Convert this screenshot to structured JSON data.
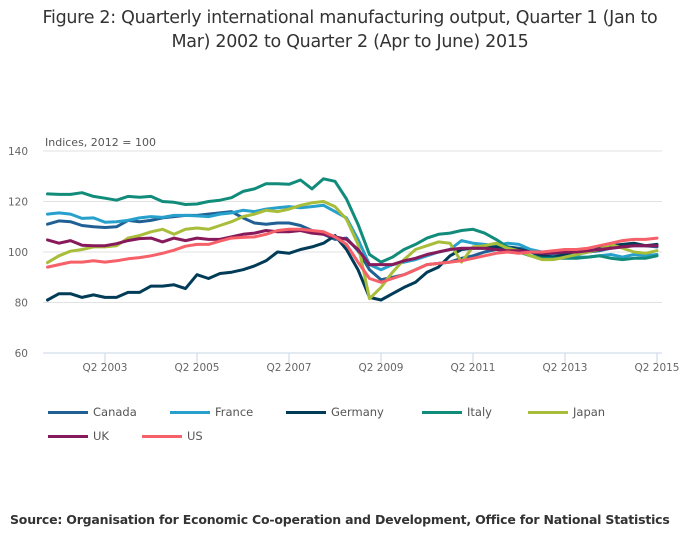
{
  "chart_data": {
    "type": "line",
    "title": "Figure 2: Quarterly international manufacturing output, Quarter 1 (Jan to Mar) 2002 to Quarter 2 (Apr to June) 2015",
    "title_lines": [
      "Figure 2: Quarterly international manufacturing output, Quarter 1 (Jan to",
      "Mar) 2002 to Quarter 2 (Apr to June) 2015"
    ],
    "ylabel": "Indices, 2012 = 100",
    "xlabel": "",
    "ylim": [
      60,
      140
    ],
    "yticks": [
      60,
      80,
      100,
      120,
      140
    ],
    "x_start": "Q1 2002",
    "x_end": "Q2 2015",
    "xtick_labels": [
      "Q2 2003",
      "Q2 2005",
      "Q2 2007",
      "Q2 2009",
      "Q2 2011",
      "Q2 2013",
      "Q2 2015"
    ],
    "xtick_indices": [
      5,
      13,
      21,
      29,
      37,
      45,
      53
    ],
    "grid": true,
    "legend_position": "bottom",
    "series": [
      {
        "name": "Canada",
        "color": "#206095",
        "values": [
          111,
          112.3,
          112,
          110.5,
          110,
          109.7,
          110,
          112.5,
          112,
          112.5,
          113.5,
          114,
          114.5,
          114.5,
          115,
          115.5,
          116,
          113.5,
          111.5,
          111,
          111.5,
          111.5,
          110.5,
          108.5,
          107,
          105,
          105.5,
          100.5,
          93,
          89,
          90,
          91,
          93,
          95,
          95.5,
          96,
          97.5,
          98.5,
          100,
          101,
          102,
          101.5,
          100.5,
          99.5,
          98.5,
          99,
          99.5,
          100,
          100.5,
          101.5,
          102,
          102.5,
          102.5,
          102
        ]
      },
      {
        "name": "France",
        "color": "#27A0CC",
        "values": [
          115,
          115.5,
          115,
          113.3,
          113.5,
          111.8,
          112,
          112.5,
          113.5,
          114,
          113.7,
          114.5,
          114.5,
          114.3,
          114,
          115,
          115.5,
          116.5,
          116,
          117,
          117.5,
          118,
          117.5,
          118,
          118.5,
          116,
          113.5,
          105,
          95,
          93,
          95,
          96,
          97,
          98.5,
          100,
          101,
          104.5,
          103.5,
          103,
          102.5,
          103.5,
          103,
          101,
          100,
          99,
          98.5,
          98,
          98,
          98.5,
          99,
          98,
          99,
          98.5,
          99
        ]
      },
      {
        "name": "Germany",
        "color": "#003C57",
        "values": [
          81,
          83.5,
          83.5,
          82,
          83,
          82,
          82,
          84,
          84,
          86.5,
          86.5,
          87,
          85.5,
          91,
          89.5,
          91.5,
          92,
          93,
          94.5,
          96.5,
          100,
          99.5,
          101,
          102,
          103.5,
          106.5,
          101,
          93,
          82,
          81,
          83.5,
          86,
          88,
          92,
          94,
          98.5,
          101,
          101.5,
          101.5,
          102,
          102,
          101,
          100,
          98.5,
          98,
          99,
          99,
          100,
          101.5,
          102.5,
          103,
          103.5,
          102.5,
          103
        ]
      },
      {
        "name": "Italy",
        "color": "#118C7B",
        "values": [
          123,
          122.8,
          122.8,
          123.5,
          122,
          121.3,
          120.5,
          122,
          121.7,
          122,
          120,
          119.7,
          118.8,
          119,
          120,
          120.5,
          121.5,
          124,
          125,
          127,
          127,
          126.8,
          128.5,
          125,
          129,
          128,
          121,
          111,
          99,
          96,
          98,
          101,
          103,
          105.5,
          107,
          107.5,
          108.5,
          109,
          107.5,
          105,
          102,
          100,
          98.5,
          97.5,
          97.5,
          97.5,
          97.5,
          98,
          98.5,
          97.5,
          97,
          97.5,
          97.5,
          98.5
        ]
      },
      {
        "name": "Japan",
        "color": "#A8BD3A",
        "values": [
          95.8,
          98.5,
          100.3,
          101,
          102,
          102,
          102.5,
          105.5,
          106.5,
          108,
          109,
          107,
          109,
          109.5,
          109,
          110.5,
          112,
          114,
          115,
          116.5,
          116,
          117,
          118.5,
          119.5,
          120,
          118,
          113,
          103,
          81.5,
          86,
          92,
          97,
          101,
          102.5,
          104,
          103.5,
          96,
          102,
          102.5,
          103.5,
          101.5,
          100.5,
          98.5,
          97,
          97,
          98,
          99,
          100,
          101,
          103,
          101.5,
          100,
          99.5,
          100.5
        ]
      },
      {
        "name": "UK",
        "color": "#871A5B",
        "values": [
          104.8,
          103.5,
          104.5,
          102.7,
          102.5,
          102.5,
          103.3,
          104.5,
          105.3,
          105.5,
          104,
          105.5,
          104.5,
          105.5,
          105,
          105,
          106,
          107,
          107.5,
          108.5,
          108,
          108,
          108.5,
          107.5,
          107,
          106,
          105,
          101,
          95,
          95,
          95,
          96.5,
          97.5,
          99,
          100,
          101,
          101.5,
          101.5,
          101.5,
          101,
          100.5,
          100.5,
          100,
          99.5,
          99.5,
          100,
          100,
          100.5,
          101,
          101.5,
          102,
          102.5,
          102.5,
          102.5
        ]
      },
      {
        "name": "US",
        "color": "#F66068",
        "values": [
          94,
          95,
          96,
          96,
          96.5,
          96,
          96.5,
          97.3,
          97.8,
          98.5,
          99.5,
          100.7,
          102.3,
          103,
          103,
          104.3,
          105.5,
          105.8,
          106,
          107,
          108.5,
          109,
          109,
          108.5,
          108,
          106,
          103,
          96,
          89.5,
          88,
          89.5,
          91,
          93,
          95,
          95.5,
          96,
          96.5,
          97.5,
          98.5,
          99.5,
          100,
          99.5,
          100,
          100,
          100.5,
          101,
          101,
          101.5,
          102.5,
          103.5,
          104.5,
          105,
          105,
          105.5
        ]
      }
    ]
  },
  "source": "Source: Organisation for Economic Co-operation and Development, Office for National Statistics"
}
